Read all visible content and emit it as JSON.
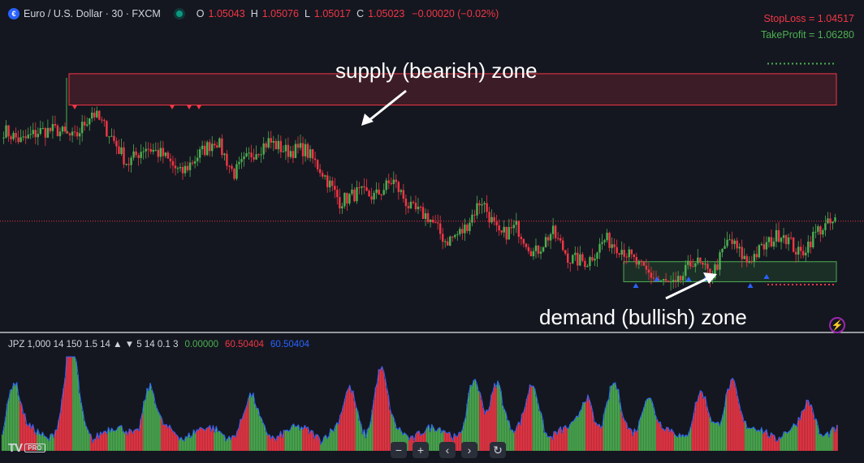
{
  "header": {
    "symbol_title": "Euro / U.S. Dollar · 30 · FXCM",
    "ohlc": [
      {
        "label": "O",
        "value": "1.05043"
      },
      {
        "label": "H",
        "value": "1.05076"
      },
      {
        "label": "L",
        "value": "1.05017"
      },
      {
        "label": "C",
        "value": "1.05023"
      }
    ],
    "change": "−0.00020 (−0.02%)"
  },
  "levels": {
    "stoploss_label": "StopLoss = 1.04517",
    "takeprofit_label": "TakeProfit = 1.06280"
  },
  "annotations": {
    "supply": "supply (bearish) zone",
    "demand": "demand (bullish) zone"
  },
  "indicator": {
    "legend": "JPZ 1,000 14 150 1.5 14 ▲ ▼ 5 14 0.1 3",
    "v1": "0.00000",
    "v2": "60.50404",
    "v3": "60.50404"
  },
  "logo": {
    "mark": "TV",
    "badge": "PRO"
  },
  "toolbar": [
    {
      "name": "zoom-out-button",
      "glyph": "−"
    },
    {
      "name": "zoom-in-button",
      "glyph": "+"
    },
    {
      "name": "scroll-left-button",
      "glyph": "‹"
    },
    {
      "name": "scroll-right-button",
      "glyph": "›"
    },
    {
      "name": "reset-chart-button",
      "glyph": "↻"
    }
  ],
  "colors": {
    "up": "#4caf50",
    "down": "#f23645",
    "supply_zone": "#f23645",
    "demand_zone": "#4caf50",
    "volume_outline": "#2962ff",
    "background": "#141720"
  },
  "chart_data": [
    {
      "type": "candlestick",
      "instrument": "Euro / U.S. Dollar",
      "timeframe": "30",
      "close_path": [
        1.0575,
        1.0566,
        1.0574,
        1.0575,
        1.0568,
        1.059,
        1.0572,
        1.0548,
        1.0562,
        1.0555,
        1.054,
        1.0555,
        1.0568,
        1.054,
        1.0556,
        1.0566,
        1.0558,
        1.056,
        1.0542,
        1.0518,
        1.0525,
        1.0522,
        1.0535,
        1.0512,
        1.0506,
        1.0486,
        1.0495,
        1.052,
        1.049,
        1.0498,
        1.0476,
        1.0494,
        1.0472,
        1.047,
        1.0488,
        1.048,
        1.0465,
        1.0455,
        1.045,
        1.0472,
        1.0458,
        1.0488,
        1.047,
        1.0482,
        1.0494,
        1.0475,
        1.0495,
        1.0502
      ],
      "last_price": 1.05023
    },
    {
      "type": "zones",
      "supply_zone": {
        "top": 1.062,
        "bottom": 1.0595
      },
      "demand_zone": {
        "top": 1.047,
        "bottom": 1.0454
      },
      "stoploss": 1.04517,
      "takeprofit": 1.0628
    },
    {
      "type": "bar",
      "name": "JPZ",
      "values_shape": "volatility-style histogram with spikes near bars 16, 87, 183, 308, 430, 583, 722, 900"
    }
  ]
}
